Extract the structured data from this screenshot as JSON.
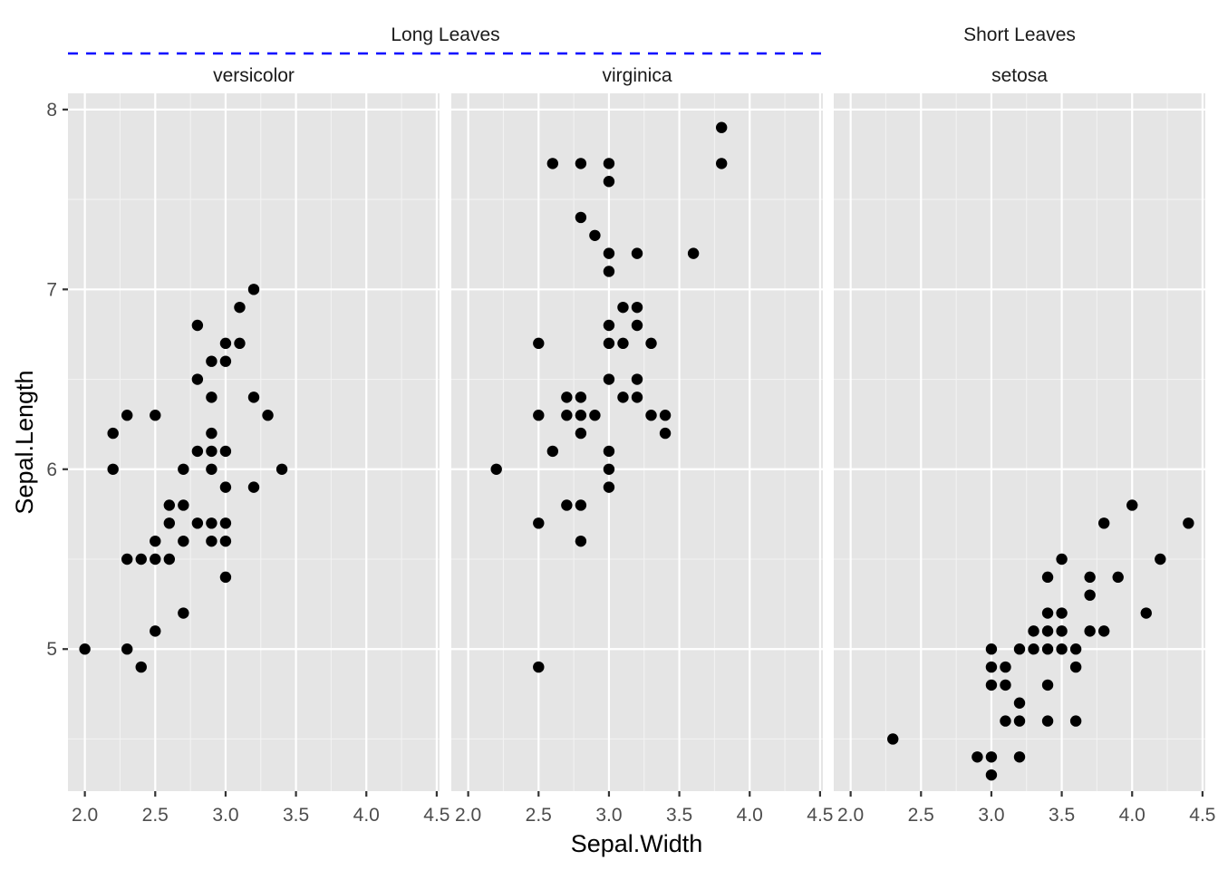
{
  "chart_data": {
    "type": "scatter",
    "xlabel": "Sepal.Width",
    "ylabel": "Sepal.Length",
    "xlim": [
      1.88,
      4.52
    ],
    "ylim": [
      4.21,
      8.09
    ],
    "x_ticks": [
      "2.0",
      "2.5",
      "3.0",
      "3.5",
      "4.0",
      "4.5"
    ],
    "y_ticks": [
      "5",
      "6",
      "7",
      "8"
    ],
    "x_tick_values": [
      2.0,
      2.5,
      3.0,
      3.5,
      4.0,
      4.5
    ],
    "y_tick_values": [
      5,
      6,
      7,
      8
    ],
    "grid": true,
    "groups": [
      {
        "label": "Long Leaves",
        "separator_color": "#0000ff",
        "panels": [
          "versicolor",
          "virginica"
        ]
      },
      {
        "label": "Short Leaves",
        "panels": [
          "setosa"
        ]
      }
    ],
    "panels": [
      {
        "name": "versicolor",
        "points": [
          [
            2.0,
            5.0
          ],
          [
            2.2,
            6.2
          ],
          [
            2.2,
            6.0
          ],
          [
            2.3,
            6.3
          ],
          [
            2.3,
            5.5
          ],
          [
            2.3,
            5.0
          ],
          [
            2.4,
            5.5
          ],
          [
            2.4,
            4.9
          ],
          [
            2.5,
            6.3
          ],
          [
            2.5,
            5.6
          ],
          [
            2.5,
            5.5
          ],
          [
            2.5,
            5.1
          ],
          [
            2.6,
            5.8
          ],
          [
            2.6,
            5.7
          ],
          [
            2.6,
            5.5
          ],
          [
            2.7,
            6.0
          ],
          [
            2.7,
            5.8
          ],
          [
            2.7,
            5.6
          ],
          [
            2.7,
            5.2
          ],
          [
            2.8,
            6.8
          ],
          [
            2.8,
            6.5
          ],
          [
            2.8,
            6.1
          ],
          [
            2.8,
            5.7
          ],
          [
            2.9,
            6.6
          ],
          [
            2.9,
            6.4
          ],
          [
            2.9,
            6.2
          ],
          [
            2.9,
            6.1
          ],
          [
            2.9,
            6.0
          ],
          [
            2.9,
            5.7
          ],
          [
            2.9,
            5.6
          ],
          [
            3.0,
            6.7
          ],
          [
            3.0,
            6.6
          ],
          [
            3.0,
            6.1
          ],
          [
            3.0,
            5.9
          ],
          [
            3.0,
            5.7
          ],
          [
            3.0,
            5.6
          ],
          [
            3.0,
            5.4
          ],
          [
            3.1,
            6.9
          ],
          [
            3.1,
            6.7
          ],
          [
            3.2,
            7.0
          ],
          [
            3.2,
            6.4
          ],
          [
            3.2,
            5.9
          ],
          [
            3.3,
            6.3
          ],
          [
            3.4,
            6.0
          ]
        ]
      },
      {
        "name": "virginica",
        "points": [
          [
            2.2,
            6.0
          ],
          [
            2.5,
            6.7
          ],
          [
            2.5,
            6.3
          ],
          [
            2.5,
            5.7
          ],
          [
            2.5,
            4.9
          ],
          [
            2.6,
            7.7
          ],
          [
            2.6,
            6.1
          ],
          [
            2.7,
            6.4
          ],
          [
            2.7,
            6.3
          ],
          [
            2.7,
            5.8
          ],
          [
            2.8,
            7.7
          ],
          [
            2.8,
            7.4
          ],
          [
            2.8,
            6.4
          ],
          [
            2.8,
            6.3
          ],
          [
            2.8,
            6.2
          ],
          [
            2.8,
            5.8
          ],
          [
            2.8,
            5.6
          ],
          [
            2.9,
            7.3
          ],
          [
            2.9,
            6.3
          ],
          [
            3.0,
            7.7
          ],
          [
            3.0,
            7.6
          ],
          [
            3.0,
            7.2
          ],
          [
            3.0,
            7.1
          ],
          [
            3.0,
            6.8
          ],
          [
            3.0,
            6.7
          ],
          [
            3.0,
            6.5
          ],
          [
            3.0,
            6.1
          ],
          [
            3.0,
            6.0
          ],
          [
            3.0,
            5.9
          ],
          [
            3.1,
            6.9
          ],
          [
            3.1,
            6.7
          ],
          [
            3.1,
            6.4
          ],
          [
            3.2,
            7.2
          ],
          [
            3.2,
            6.9
          ],
          [
            3.2,
            6.8
          ],
          [
            3.2,
            6.5
          ],
          [
            3.2,
            6.4
          ],
          [
            3.3,
            6.7
          ],
          [
            3.3,
            6.3
          ],
          [
            3.4,
            6.3
          ],
          [
            3.4,
            6.2
          ],
          [
            3.6,
            7.2
          ],
          [
            3.8,
            7.9
          ],
          [
            3.8,
            7.7
          ]
        ]
      },
      {
        "name": "setosa",
        "points": [
          [
            2.3,
            4.5
          ],
          [
            2.9,
            4.4
          ],
          [
            3.0,
            5.0
          ],
          [
            3.0,
            4.9
          ],
          [
            3.0,
            4.8
          ],
          [
            3.0,
            4.4
          ],
          [
            3.0,
            4.3
          ],
          [
            3.1,
            4.9
          ],
          [
            3.1,
            4.8
          ],
          [
            3.1,
            4.6
          ],
          [
            3.2,
            5.0
          ],
          [
            3.2,
            4.7
          ],
          [
            3.2,
            4.6
          ],
          [
            3.2,
            4.4
          ],
          [
            3.3,
            5.1
          ],
          [
            3.3,
            5.0
          ],
          [
            3.4,
            5.4
          ],
          [
            3.4,
            5.2
          ],
          [
            3.4,
            5.1
          ],
          [
            3.4,
            5.0
          ],
          [
            3.4,
            4.8
          ],
          [
            3.4,
            4.6
          ],
          [
            3.5,
            5.5
          ],
          [
            3.5,
            5.2
          ],
          [
            3.5,
            5.1
          ],
          [
            3.5,
            5.0
          ],
          [
            3.6,
            5.0
          ],
          [
            3.6,
            4.9
          ],
          [
            3.6,
            4.6
          ],
          [
            3.7,
            5.4
          ],
          [
            3.7,
            5.3
          ],
          [
            3.7,
            5.1
          ],
          [
            3.8,
            5.7
          ],
          [
            3.8,
            5.1
          ],
          [
            3.9,
            5.4
          ],
          [
            4.0,
            5.8
          ],
          [
            4.1,
            5.2
          ],
          [
            4.2,
            5.5
          ],
          [
            4.4,
            5.7
          ]
        ]
      }
    ]
  }
}
